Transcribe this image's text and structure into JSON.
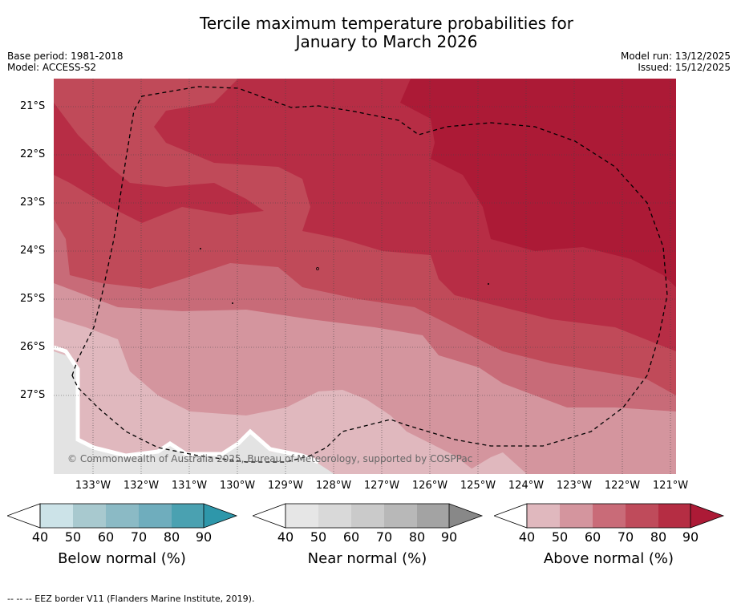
{
  "title_line1": "Tercile maximum temperature probabilities for",
  "title_line2": "January to March 2026",
  "meta": {
    "base_period": "Base period: 1981-2018",
    "model": "Model: ACCESS-S2",
    "model_run": "Model run: 13/12/2025",
    "issued": "Issued: 15/12/2025"
  },
  "latitudes": [
    "21°S",
    "22°S",
    "23°S",
    "24°S",
    "25°S",
    "26°S",
    "27°S"
  ],
  "longitudes": [
    "133°W",
    "132°W",
    "131°W",
    "130°W",
    "129°W",
    "128°W",
    "127°W",
    "126°W",
    "125°W",
    "124°W",
    "123°W",
    "122°W",
    "121°W"
  ],
  "copyright": "© Commonwealth of Australia 2025, Bureau of Meteorology, supported by COSPPac",
  "colorbars": [
    {
      "label": "Below normal (%)",
      "ticks": [
        "40",
        "50",
        "60",
        "70",
        "80",
        "90"
      ],
      "colors": [
        "#cce3e8",
        "#a8c9cf",
        "#8bbac5",
        "#6fadbd",
        "#4aa1b1",
        "#2e97aa"
      ]
    },
    {
      "label": "Near normal (%)",
      "ticks": [
        "40",
        "50",
        "60",
        "70",
        "80",
        "90"
      ],
      "colors": [
        "#e6e6e6",
        "#d9d9d9",
        "#cacaca",
        "#b8b8b8",
        "#a3a3a3",
        "#888888"
      ]
    },
    {
      "label": "Above normal (%)",
      "ticks": [
        "40",
        "50",
        "60",
        "70",
        "80",
        "90"
      ],
      "colors": [
        "#e0b8be",
        "#d4959e",
        "#c96b78",
        "#bf4b5b",
        "#b52d43",
        "#ac1a36"
      ]
    }
  ],
  "footnote": "--  --  -- EEZ border V11 (Flanders Marine Institute, 2019).",
  "colors": {
    "above_90": "#ac1a36",
    "above_80": "#b72d45",
    "above_70": "#c04a59",
    "above_60": "#c86b78",
    "above_50": "#d4959e",
    "above_40": "#e0b8be",
    "near_40": "#e3e3e3"
  }
}
